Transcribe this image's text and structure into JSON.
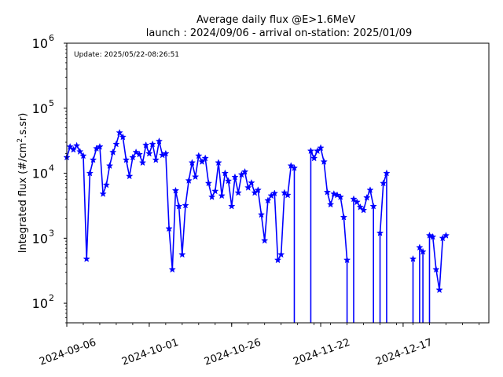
{
  "chart_data": {
    "type": "line",
    "title": "Average daily flux @E>1.6MeV",
    "subtitle": "launch : 2024/09/06 - arrival on-station: 2025/01/09",
    "annotation": "Update: 2025/05/22-08:26:51",
    "xlabel": "",
    "ylabel": "Integrated flux (#/cm².s.sr)",
    "ylabel_parts": [
      "Integrated flux (#/cm",
      "2",
      ".s.sr)"
    ],
    "yscale": "log",
    "ylim": [
      50,
      1000000
    ],
    "xlim": [
      "2024-09-06",
      "2025-01-12"
    ],
    "grid": false,
    "legend": "none",
    "line_color": "#0000ff",
    "marker": "star",
    "xticks": [
      "2024-09-06",
      "2024-10-01",
      "2024-10-26",
      "2024-11-22",
      "2024-12-17"
    ],
    "yticks": [
      {
        "base": "10",
        "exp": "2",
        "value": 100
      },
      {
        "base": "10",
        "exp": "3",
        "value": 1000
      },
      {
        "base": "10",
        "exp": "4",
        "value": 10000
      },
      {
        "base": "10",
        "exp": "5",
        "value": 100000
      },
      {
        "base": "10",
        "exp": "6",
        "value": 1000000
      }
    ],
    "series": [
      {
        "segments": [
          [
            [
              "2024-09-06",
              17500
            ],
            [
              "2024-09-07",
              25500
            ],
            [
              "2024-09-08",
              23000
            ],
            [
              "2024-09-09",
              26500
            ],
            [
              "2024-09-10",
              21500
            ],
            [
              "2024-09-11",
              18500
            ],
            [
              "2024-09-12",
              480
            ],
            [
              "2024-09-13",
              10000
            ],
            [
              "2024-09-14",
              16000
            ],
            [
              "2024-09-15",
              24000
            ],
            [
              "2024-09-16",
              25500
            ],
            [
              "2024-09-17",
              4800
            ],
            [
              "2024-09-18",
              6600
            ],
            [
              "2024-09-19",
              13000
            ],
            [
              "2024-09-20",
              21000
            ],
            [
              "2024-09-21",
              28000
            ],
            [
              "2024-09-22",
              42000
            ],
            [
              "2024-09-23",
              36000
            ],
            [
              "2024-09-24",
              16000
            ],
            [
              "2024-09-25",
              9000
            ],
            [
              "2024-09-26",
              17500
            ],
            [
              "2024-09-27",
              21000
            ],
            [
              "2024-09-28",
              19500
            ],
            [
              "2024-09-29",
              14500
            ],
            [
              "2024-09-30",
              27000
            ],
            [
              "2024-10-01",
              20000
            ],
            [
              "2024-10-02",
              28000
            ],
            [
              "2024-10-03",
              16000
            ],
            [
              "2024-10-04",
              31000
            ],
            [
              "2024-10-05",
              19000
            ],
            [
              "2024-10-06",
              20000
            ],
            [
              "2024-10-07",
              1400
            ],
            [
              "2024-10-08",
              330
            ],
            [
              "2024-10-09",
              5400
            ],
            [
              "2024-10-10",
              3100
            ],
            [
              "2024-10-11",
              560
            ],
            [
              "2024-10-12",
              3200
            ],
            [
              "2024-10-13",
              7700
            ],
            [
              "2024-10-14",
              14500
            ],
            [
              "2024-10-15",
              8800
            ],
            [
              "2024-10-16",
              18500
            ],
            [
              "2024-10-17",
              15000
            ],
            [
              "2024-10-18",
              17000
            ],
            [
              "2024-10-19",
              7000
            ],
            [
              "2024-10-20",
              4300
            ],
            [
              "2024-10-21",
              5300
            ],
            [
              "2024-10-22",
              14500
            ],
            [
              "2024-10-23",
              4500
            ],
            [
              "2024-10-24",
              10000
            ],
            [
              "2024-10-25",
              7600
            ],
            [
              "2024-10-26",
              3100
            ],
            [
              "2024-10-27",
              8700
            ],
            [
              "2024-10-28",
              5000
            ],
            [
              "2024-10-29",
              9500
            ],
            [
              "2024-10-30",
              10500
            ],
            [
              "2024-10-31",
              6000
            ],
            [
              "2024-11-01",
              7100
            ],
            [
              "2024-11-02",
              5000
            ],
            [
              "2024-11-03",
              5500
            ],
            [
              "2024-11-04",
              2300
            ],
            [
              "2024-11-05",
              920
            ],
            [
              "2024-11-06",
              3800
            ],
            [
              "2024-11-07",
              4500
            ],
            [
              "2024-11-08",
              4900
            ],
            [
              "2024-11-09",
              460
            ],
            [
              "2024-11-10",
              560
            ],
            [
              "2024-11-11",
              5000
            ],
            [
              "2024-11-12",
              4600
            ],
            [
              "2024-11-13",
              13000
            ],
            [
              "2024-11-14",
              12000
            ]
          ],
          [
            [
              "2024-11-19",
              22000
            ],
            [
              "2024-11-20",
              17000
            ],
            [
              "2024-11-21",
              22000
            ],
            [
              "2024-11-22",
              24500
            ],
            [
              "2024-11-23",
              15000
            ],
            [
              "2024-11-24",
              5100
            ],
            [
              "2024-11-25",
              3300
            ],
            [
              "2024-11-26",
              4800
            ],
            [
              "2024-11-27",
              4600
            ],
            [
              "2024-11-28",
              4300
            ],
            [
              "2024-11-29",
              2100
            ],
            [
              "2024-11-30",
              460
            ]
          ],
          [
            [
              "2024-12-02",
              4000
            ],
            [
              "2024-12-03",
              3600
            ],
            [
              "2024-12-04",
              3000
            ],
            [
              "2024-12-05",
              2700
            ],
            [
              "2024-12-06",
              4200
            ],
            [
              "2024-12-07",
              5500
            ],
            [
              "2024-12-08",
              3100
            ]
          ],
          [
            [
              "2024-12-10",
              1200
            ],
            [
              "2024-12-11",
              7000
            ],
            [
              "2024-12-12",
              10000
            ]
          ],
          [
            [
              "2024-12-20",
              480
            ]
          ],
          [
            [
              "2024-12-22",
              720
            ],
            [
              "2024-12-23",
              620
            ]
          ],
          [
            [
              "2024-12-25",
              1100
            ],
            [
              "2024-12-26",
              1050
            ],
            [
              "2024-12-27",
              330
            ],
            [
              "2024-12-28",
              160
            ],
            [
              "2024-12-29",
              1000
            ],
            [
              "2024-12-30",
              1100
            ]
          ]
        ],
        "drop_dates": [
          "2024-11-14",
          "2024-11-19",
          "2024-11-30",
          "2024-12-02",
          "2024-12-08",
          "2024-12-10",
          "2024-12-12",
          "2024-12-20",
          "2024-12-22",
          "2024-12-23",
          "2024-12-25"
        ]
      }
    ]
  }
}
